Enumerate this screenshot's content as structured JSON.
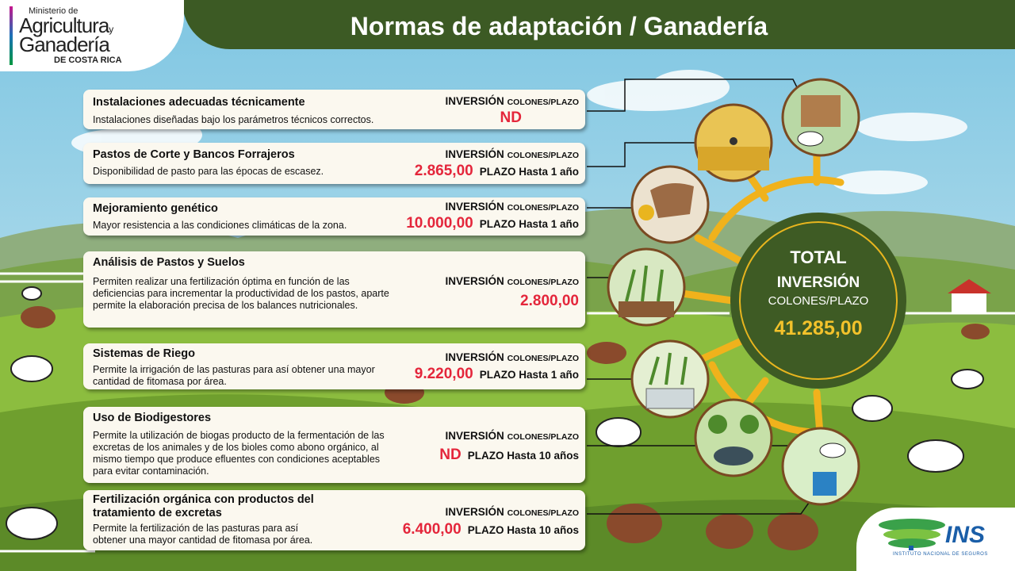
{
  "header": {
    "title": "Normas de adaptación / Ganadería"
  },
  "logo": {
    "line1": "Ministerio de",
    "line2": "Agricultura",
    "line2_suffix": "y",
    "line3": "Ganadería",
    "line4": "DE COSTA RICA"
  },
  "inversion_label": "INVERSIÓN",
  "inversion_unit": "COLONES/PLAZO",
  "cards": [
    {
      "title": "Instalaciones adecuadas técnicamente",
      "desc": "Instalaciones diseñadas bajo los parámetros técnicos correctos.",
      "amount": "ND",
      "plazo": ""
    },
    {
      "title": "Pastos de Corte y Bancos Forrajeros",
      "desc": "Disponibilidad de pasto para las épocas de escasez.",
      "amount": "2.865,00",
      "plazo": "PLAZO Hasta 1 año"
    },
    {
      "title": "Mejoramiento genético",
      "desc": "Mayor resistencia a las condiciones climáticas de la zona.",
      "amount": "10.000,00",
      "plazo": "PLAZO Hasta 1 año"
    },
    {
      "title": "Análisis de Pastos y Suelos",
      "desc": "Permiten realizar una fertilización óptima en función de las deficiencias para incrementar la productividad de los pastos, aparte permite la elaboración precisa de los balances nutricionales.",
      "amount": "2.800,00",
      "plazo": ""
    },
    {
      "title": "Sistemas de Riego",
      "desc": "Permite la irrigación de las pasturas para así obtener una mayor cantidad de fitomasa por área.",
      "amount": "9.220,00",
      "plazo": "PLAZO Hasta 1 año"
    },
    {
      "title": "Uso de Biodigestores",
      "desc": "Permite la utilización de biogas producto de la fermentación de las excretas de los animales y de los bioles como abono orgánico, al mismo tiempo que produce efluentes con condiciones aceptables para evitar contaminación.",
      "amount": "ND",
      "plazo": "PLAZO Hasta 10 años"
    },
    {
      "title": "Fertilización orgánica con productos del tratamiento de excretas",
      "desc": "Permite la fertilización de las pasturas para así obtener una mayor cantidad de fitomasa por área.",
      "amount": "6.400,00",
      "plazo": "PLAZO Hasta 10 años"
    }
  ],
  "total": {
    "title": "TOTAL",
    "label": "INVERSIÓN",
    "unit": "COLONES/PLAZO",
    "value": "41.285,00"
  },
  "ins": {
    "name": "INS",
    "subtitle": "INSTITUTO NACIONAL DE SEGUROS"
  },
  "colors": {
    "header": "#3c5a24",
    "amount": "#e4263b",
    "total_value": "#f3c22b",
    "hub_ring": "#f0b21c"
  },
  "icons": [
    "barn-cow-icon",
    "tractor-field-icon",
    "cow-dna-icon",
    "soil-analysis-icon",
    "irrigation-icon",
    "biodigester-icon",
    "fertilizer-icon"
  ]
}
